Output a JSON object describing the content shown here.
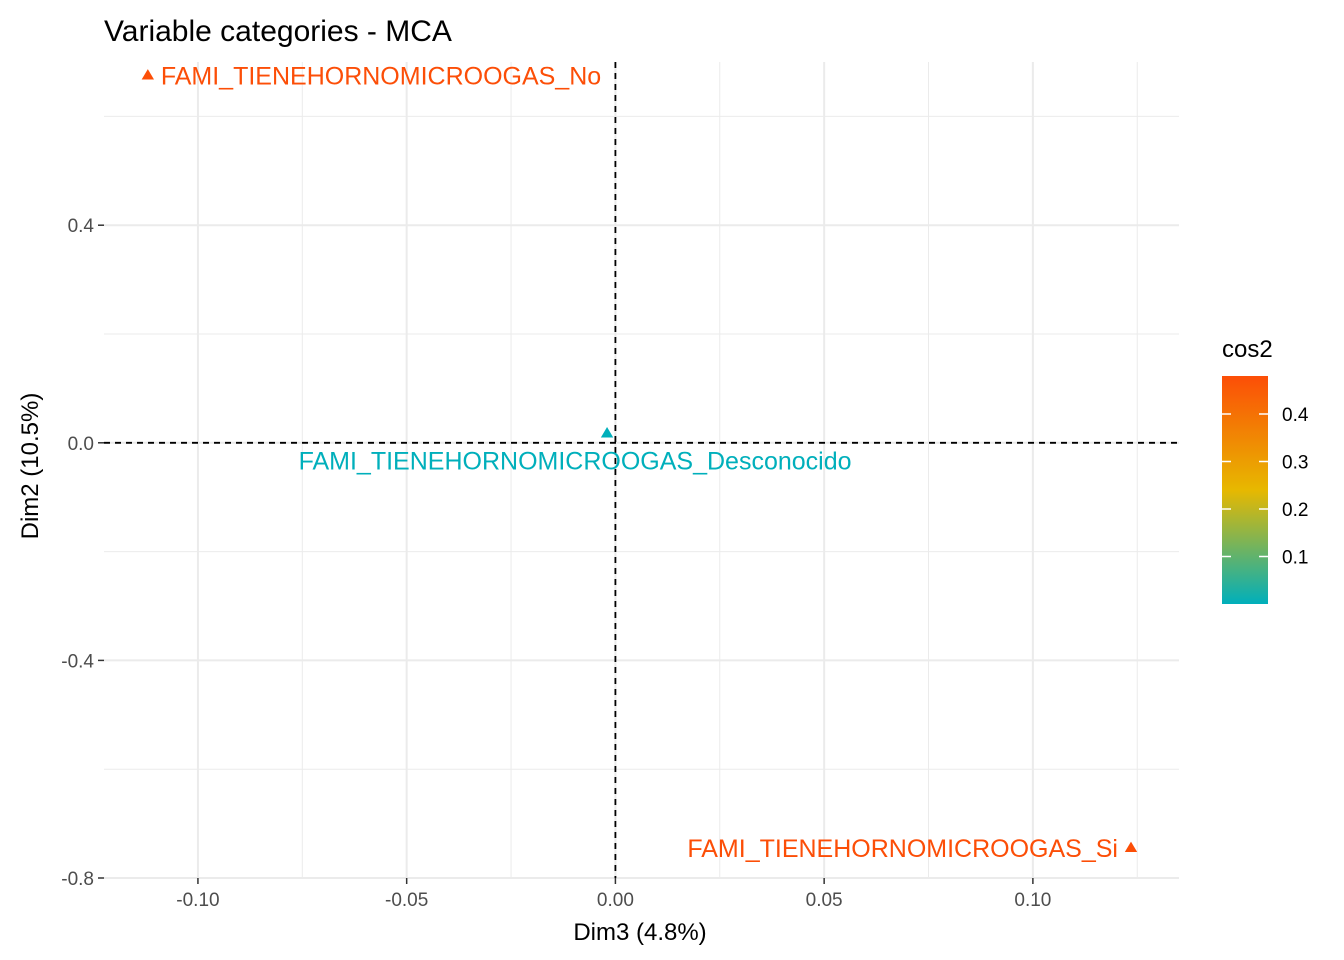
{
  "chart_data": {
    "type": "scatter",
    "title": "Variable categories - MCA",
    "xlabel": "Dim3 (4.8%)",
    "ylabel": "Dim2 (10.5%)",
    "xlim": [
      -0.1225,
      0.135
    ],
    "ylim": [
      -0.8,
      0.7
    ],
    "x_ticks": [
      -0.1,
      -0.05,
      0.0,
      0.05,
      0.1
    ],
    "x_tick_labels": [
      "-0.10",
      "-0.05",
      "0.00",
      "0.05",
      "0.10"
    ],
    "y_ticks": [
      -0.8,
      -0.4,
      0.0,
      0.4
    ],
    "y_tick_labels": [
      "-0.8",
      "-0.4",
      "0.0",
      "0.4"
    ],
    "grid": true,
    "reference_lines": {
      "x": 0,
      "y": 0,
      "style": "dashed"
    },
    "points": [
      {
        "label": "FAMI_TIENEHORNOMICROOGAS_No",
        "x": -0.112,
        "y": 0.675,
        "cos2": 0.48,
        "label_anchor": "start"
      },
      {
        "label": "FAMI_TIENEHORNOMICROOGAS_Desconocido",
        "x": -0.002,
        "y": 0.017,
        "cos2": 0.0,
        "label_anchor": "middle"
      },
      {
        "label": "FAMI_TIENEHORNOMICROOGAS_Si",
        "x": 0.1235,
        "y": -0.745,
        "cos2": 0.48,
        "label_anchor": "end"
      }
    ],
    "marker": "triangle",
    "color_scale": {
      "title": "cos2",
      "min": 0.0,
      "max": 0.48,
      "stops": [
        {
          "value": 0.0,
          "color": "#00AFBB"
        },
        {
          "value": 0.24,
          "color": "#E7B800"
        },
        {
          "value": 0.48,
          "color": "#FC4E07"
        }
      ],
      "ticks": [
        0.1,
        0.2,
        0.3,
        0.4
      ],
      "tick_labels": [
        "0.1",
        "0.2",
        "0.3",
        "0.4"
      ]
    },
    "legend_position": "right"
  }
}
